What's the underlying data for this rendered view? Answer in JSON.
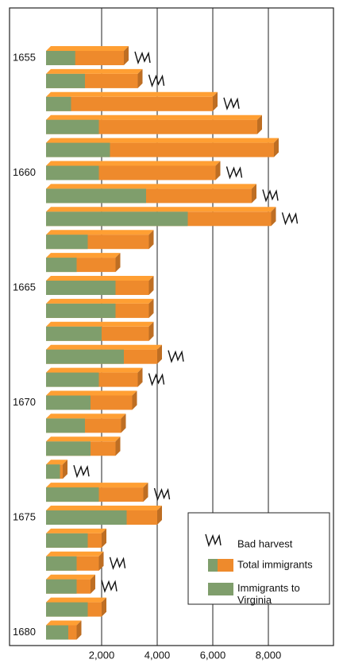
{
  "chart_data": {
    "type": "bar",
    "orientation": "horizontal",
    "categories": [
      "1655",
      null,
      null,
      null,
      null,
      "1660",
      null,
      null,
      null,
      null,
      "1665",
      null,
      null,
      null,
      null,
      "1670",
      null,
      null,
      null,
      null,
      "1675",
      null,
      null,
      null,
      null,
      "1680"
    ],
    "series": [
      {
        "name": "Total immigrants",
        "color": "#ee8a2c",
        "values": [
          2800,
          3300,
          6000,
          7600,
          8200,
          6100,
          7400,
          8100,
          3700,
          2500,
          3700,
          3700,
          3700,
          4000,
          3300,
          3100,
          2700,
          2500,
          600,
          3500,
          4000,
          2000,
          1900,
          1600,
          2000,
          1100
        ]
      },
      {
        "name": "Immigrants to Virginia",
        "color": "#7f9e6c",
        "values": [
          1050,
          1400,
          900,
          1900,
          2300,
          1900,
          3600,
          5100,
          1500,
          1100,
          2500,
          2500,
          2000,
          2800,
          1900,
          1600,
          1400,
          1600,
          500,
          1900,
          2900,
          1500,
          1100,
          1100,
          1500,
          800
        ]
      }
    ],
    "bad_harvest": {
      "name": "Bad harvest",
      "years": [
        true,
        true,
        true,
        false,
        false,
        true,
        true,
        true,
        false,
        false,
        false,
        false,
        false,
        true,
        true,
        false,
        false,
        false,
        true,
        true,
        false,
        false,
        true,
        true,
        false,
        false
      ]
    },
    "xlim": [
      0,
      10000
    ],
    "xticks": [
      {
        "value": 2000,
        "label": "2,000"
      },
      {
        "value": 4000,
        "label": "4,000"
      },
      {
        "value": 6000,
        "label": "6,000"
      },
      {
        "value": 8000,
        "label": "8,000"
      }
    ],
    "grid": true,
    "legend": "lower right"
  }
}
